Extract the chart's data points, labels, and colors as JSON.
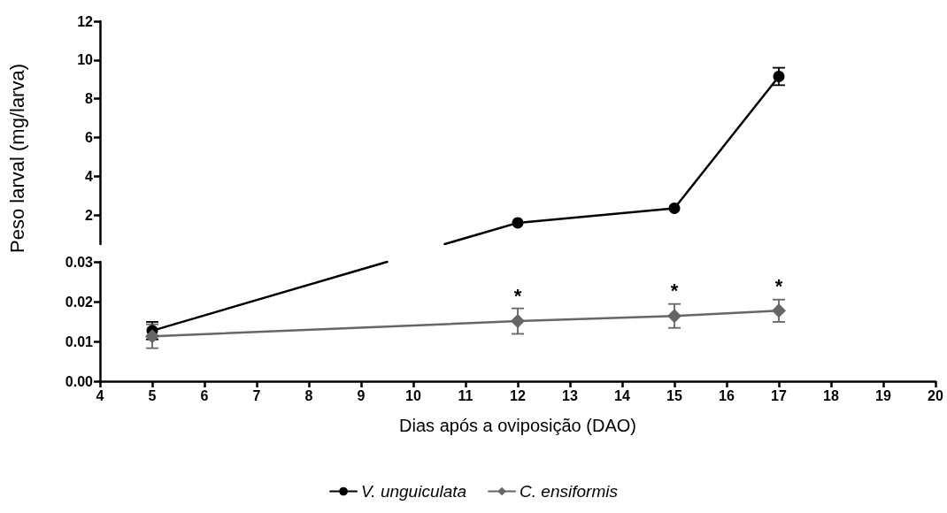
{
  "chart_data": [
    {
      "type": "line",
      "ylabel": "Peso larval (mg/larva)",
      "xlim": [
        4,
        20
      ],
      "ylim": [
        0.5,
        12
      ],
      "yticks": [
        2,
        4,
        6,
        8,
        10,
        12
      ],
      "tick_labels": "y",
      "grid": false,
      "legend": false,
      "series": [
        {
          "color": "#000000",
          "x": [
            10.6,
            12
          ],
          "values": [
            0.5,
            1.6
          ]
        },
        {
          "color": "#000000",
          "marker": "circle",
          "x": [
            12,
            15,
            17
          ],
          "values": [
            1.6,
            2.35,
            9.15
          ],
          "errors": [
            null,
            null,
            0.45
          ]
        }
      ]
    },
    {
      "type": "line",
      "xlabel": "Dias após a oviposição (DAO)",
      "xlim": [
        4,
        20
      ],
      "xticks": [
        4,
        5,
        6,
        7,
        8,
        9,
        10,
        11,
        12,
        13,
        14,
        15,
        16,
        17,
        18,
        19,
        20
      ],
      "ylim": [
        0,
        0.03
      ],
      "yticks": [
        {
          "value": 0,
          "label": "0.00"
        },
        {
          "value": 0.01,
          "label": "0.01"
        },
        {
          "value": 0.02,
          "label": "0.02"
        },
        {
          "value": 0.03,
          "label": "0.03"
        }
      ],
      "grid": false,
      "legend": "bottom",
      "series": [
        {
          "color": "#000000",
          "x": [
            5,
            9.5
          ],
          "values": [
            0.0127,
            0.03
          ]
        },
        {
          "name": "V. unguiculata",
          "color": "#000000",
          "marker": "circle",
          "x": [
            5
          ],
          "values": [
            0.0127
          ],
          "errors": [
            0.0022
          ]
        },
        {
          "name": "C. ensiformis",
          "color": "#666666",
          "marker": "diamond",
          "x": [
            5,
            12,
            15,
            17
          ],
          "values": [
            0.0113,
            0.0151,
            0.0164,
            0.0177
          ],
          "errors": [
            0.003,
            0.0032,
            0.003,
            0.0028
          ]
        }
      ],
      "annotations": [
        {
          "text": "*",
          "x": 12,
          "y": 0.0182
        },
        {
          "text": "*",
          "x": 15,
          "y": 0.0194
        },
        {
          "text": "*",
          "x": 17,
          "y": 0.0205
        }
      ]
    }
  ]
}
